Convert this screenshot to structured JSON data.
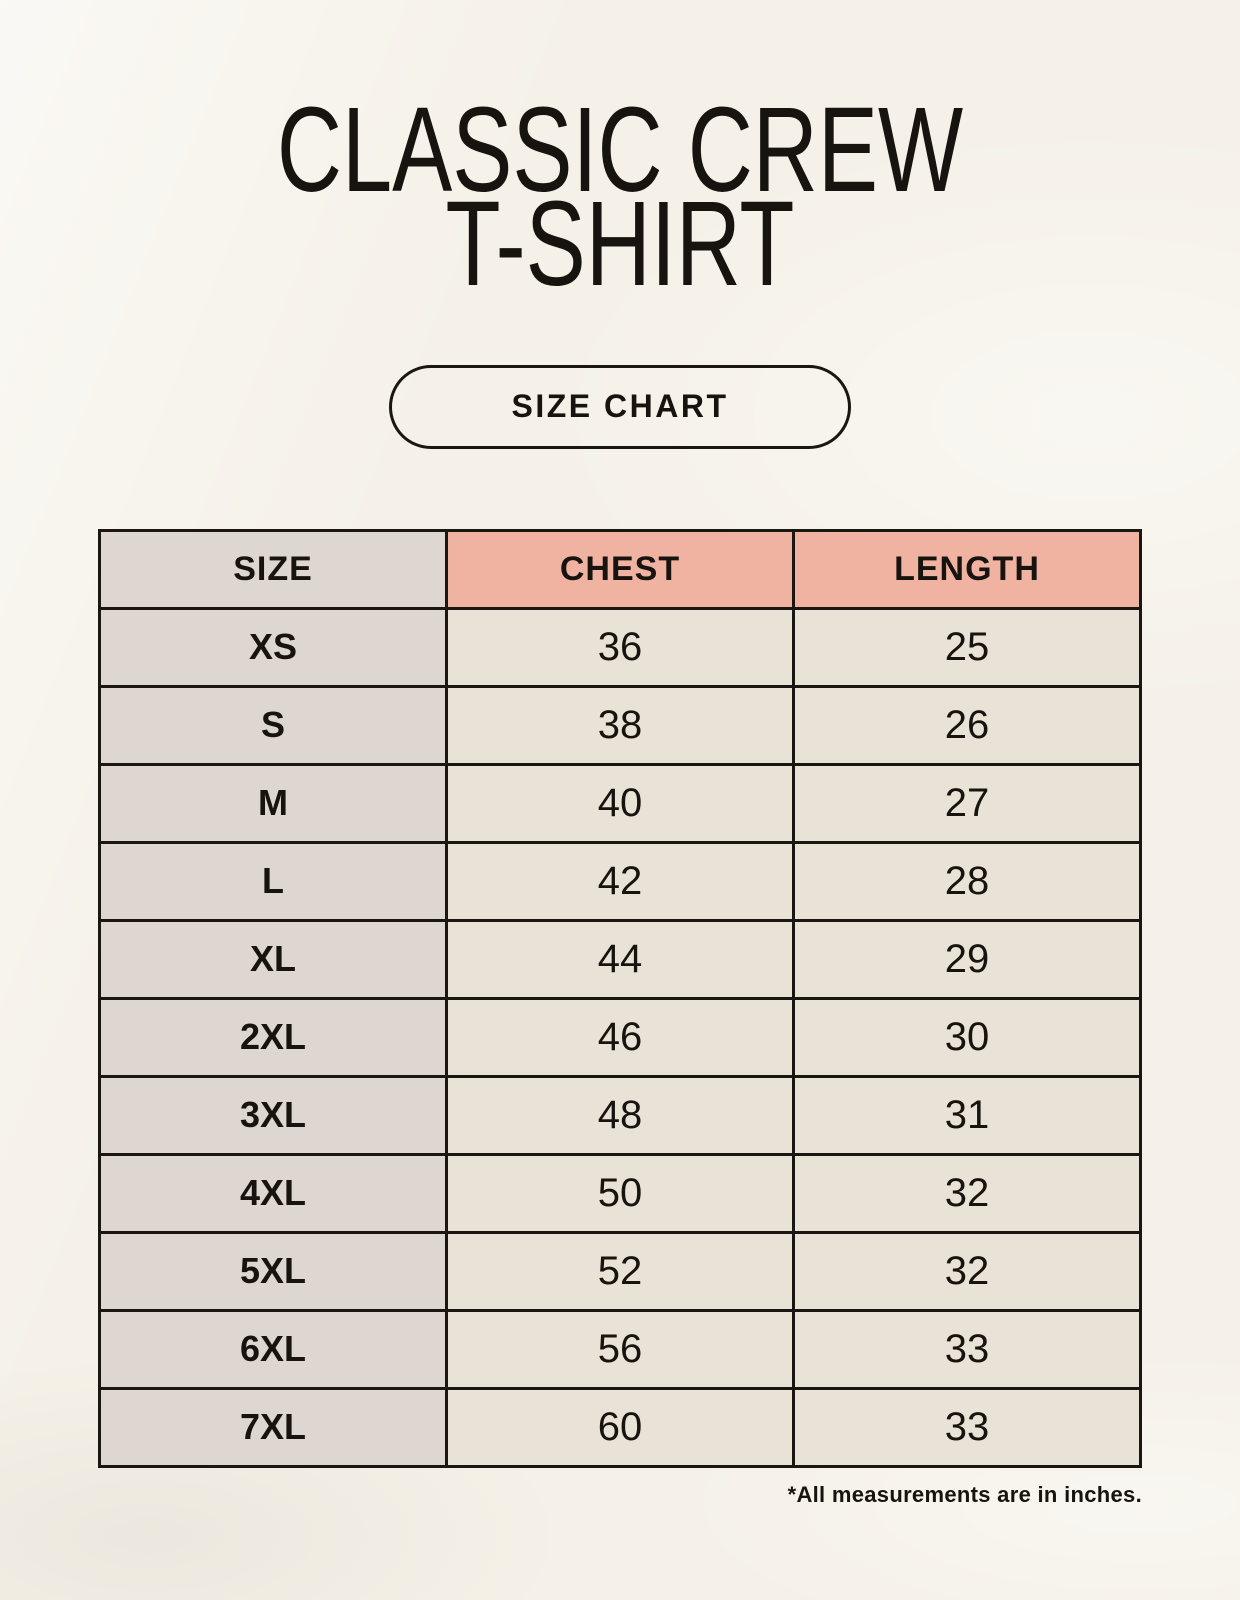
{
  "header": {
    "title_line1": "CLASSIC CREW",
    "title_line2": "T-SHIRT",
    "badge_label": "SIZE CHART"
  },
  "chart_data": {
    "type": "table",
    "title": "CLASSIC CREW T-SHIRT",
    "subtitle": "SIZE CHART",
    "columns": [
      "SIZE",
      "CHEST",
      "LENGTH"
    ],
    "rows": [
      [
        "XS",
        "36",
        "25"
      ],
      [
        "S",
        "38",
        "26"
      ],
      [
        "M",
        "40",
        "27"
      ],
      [
        "L",
        "42",
        "28"
      ],
      [
        "XL",
        "44",
        "29"
      ],
      [
        "2XL",
        "46",
        "30"
      ],
      [
        "3XL",
        "48",
        "31"
      ],
      [
        "4XL",
        "50",
        "32"
      ],
      [
        "5XL",
        "52",
        "32"
      ],
      [
        "6XL",
        "56",
        "33"
      ],
      [
        "7XL",
        "60",
        "33"
      ]
    ],
    "annotation": "*All measurements are in inches.",
    "units": "inches"
  },
  "colors": {
    "bg": "#f5f1e8",
    "accent_pink": "#f0b2a1",
    "size_col_bg": "#ded7d1",
    "data_cell_bg": "#e9e2d7",
    "border": "#1a1713",
    "text": "#17140f"
  }
}
